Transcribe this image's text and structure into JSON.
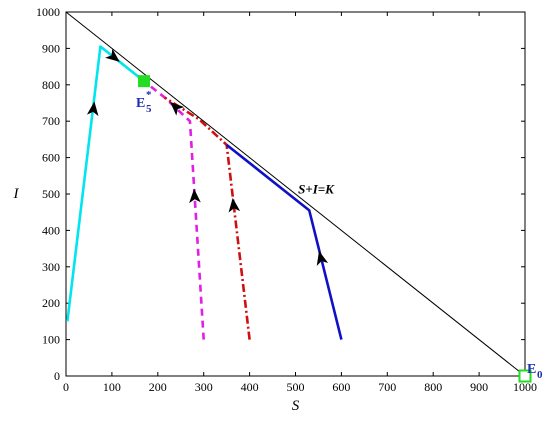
{
  "chart_data": {
    "type": "line",
    "title": "",
    "xlabel": "S",
    "ylabel": "I",
    "xlim": [
      0,
      1000
    ],
    "ylim": [
      0,
      1000
    ],
    "xticks": [
      0,
      100,
      200,
      300,
      400,
      500,
      600,
      700,
      800,
      900,
      1000
    ],
    "yticks": [
      0,
      100,
      200,
      300,
      400,
      500,
      600,
      700,
      800,
      900,
      1000
    ],
    "grid": false,
    "series": [
      {
        "style": "solid",
        "color": "#00e5ee",
        "points": [
          [
            3,
            150
          ],
          [
            75,
            905
          ],
          [
            170,
            810
          ]
        ],
        "arrows": [
          [
            60,
            735,
            1
          ],
          [
            105,
            875,
            1
          ]
        ]
      },
      {
        "style": "dashed",
        "color": "#e21fe2",
        "points": [
          [
            300,
            100
          ],
          [
            270,
            700
          ],
          [
            215,
            765
          ],
          [
            170,
            810
          ]
        ],
        "arrows": [
          [
            280,
            495,
            1
          ],
          [
            238,
            740,
            1
          ]
        ]
      },
      {
        "style": "dashdot",
        "color": "#d01010",
        "points": [
          [
            400,
            100
          ],
          [
            350,
            635
          ],
          [
            290,
            705
          ],
          [
            215,
            765
          ]
        ],
        "arrows": [
          [
            365,
            470,
            1
          ]
        ]
      },
      {
        "style": "solid",
        "color": "#1010c8",
        "points": [
          [
            600,
            100
          ],
          [
            530,
            455
          ],
          [
            350,
            635
          ]
        ],
        "arrows": [
          [
            555,
            325,
            1
          ]
        ]
      },
      {
        "style": "solid",
        "color": "#000000",
        "points": [
          [
            0,
            1000
          ],
          [
            1000,
            0
          ]
        ]
      }
    ],
    "equilibria": [
      {
        "name": "E",
        "sub": "5",
        "sup": "*",
        "x": 170,
        "y": 810,
        "fill": "#22dd22"
      },
      {
        "name": "E",
        "sub": "0",
        "sup": "",
        "x": 1000,
        "y": 0,
        "fill": "none"
      }
    ],
    "annotations": [
      {
        "text": "S+I=K",
        "x": 510,
        "y": 502
      }
    ]
  }
}
